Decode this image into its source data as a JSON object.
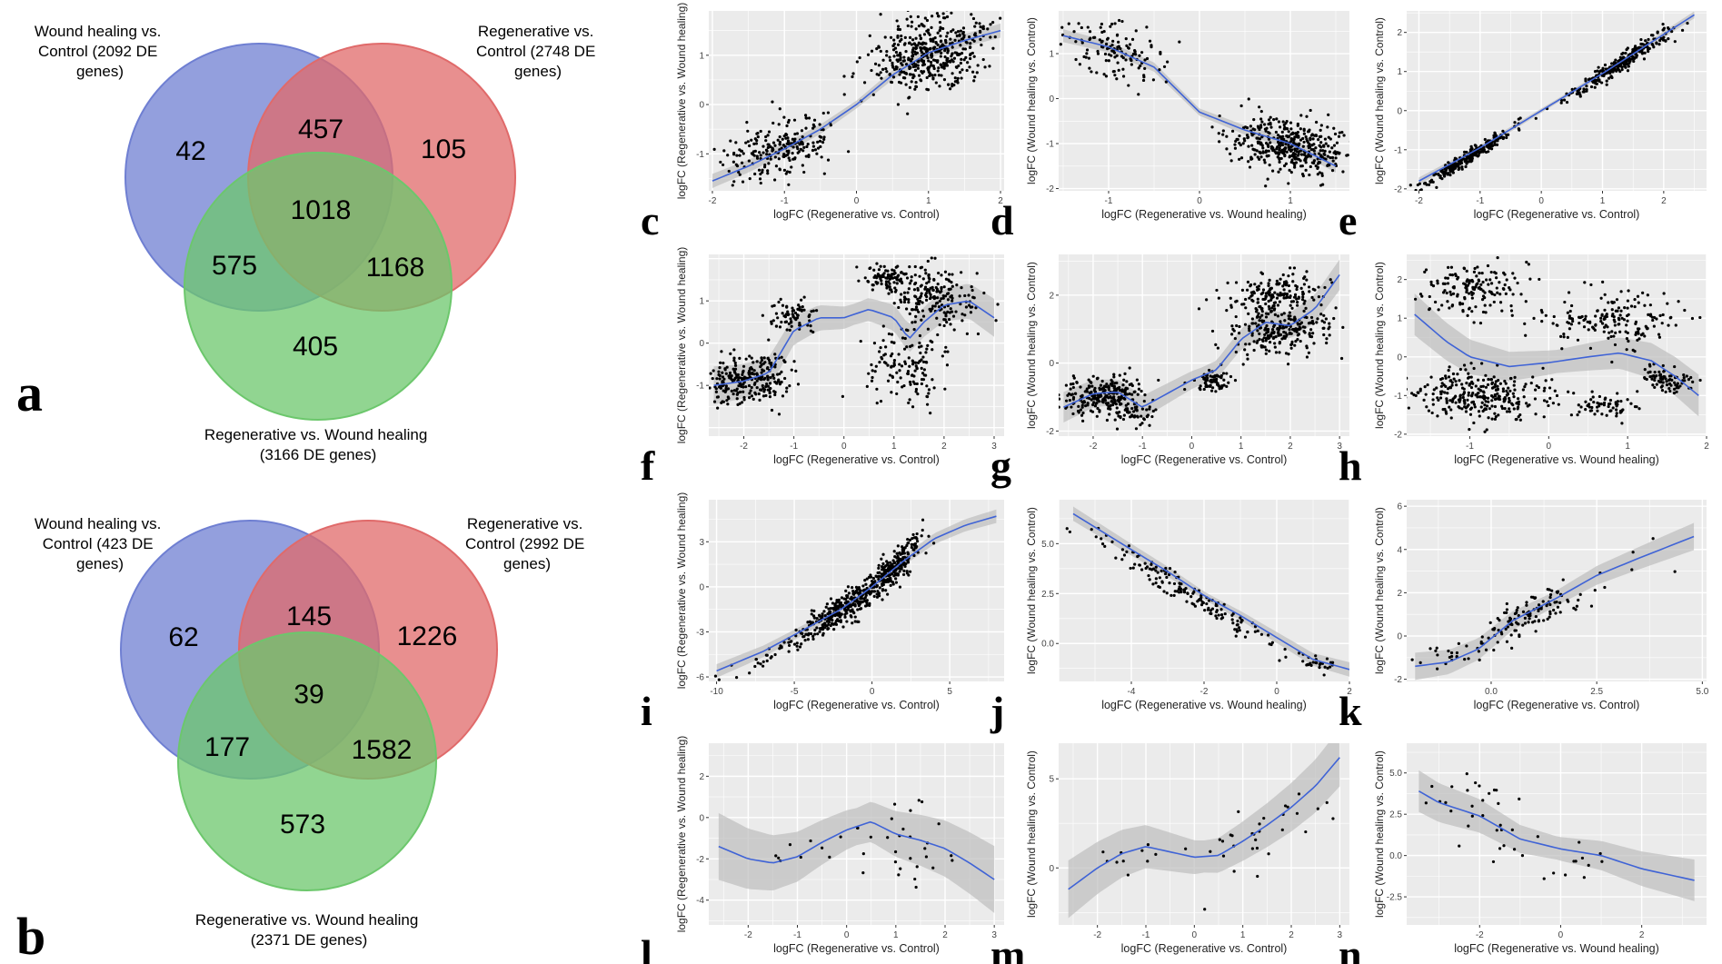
{
  "colors": {
    "wound": "#6f7fd2",
    "regen": "#e06a6a",
    "regen_wound": "#6cc76c",
    "panel_bg": "#ebebeb",
    "grid": "#ffffff",
    "smooth": "#3f63d6",
    "band": "#bdbdbd",
    "point": "#000000"
  },
  "venns": [
    {
      "panel_label": "a",
      "circles": [
        {
          "name": "wound",
          "label_lines": [
            "Wound healing vs.",
            "Control (2092 DE",
            "genes)"
          ]
        },
        {
          "name": "regen",
          "label_lines": [
            "Regenerative vs.",
            "Control (2748 DE",
            "genes)"
          ]
        },
        {
          "name": "rw",
          "label_lines": [
            "Regenerative vs. Wound healing",
            "(3166 DE genes)"
          ]
        }
      ],
      "counts": {
        "wound_only": "42",
        "wound_regen": "457",
        "regen_only": "105",
        "all": "1018",
        "wound_rw": "575",
        "regen_rw": "1168",
        "rw_only": "405"
      }
    },
    {
      "panel_label": "b",
      "circles": [
        {
          "name": "wound",
          "label_lines": [
            "Wound healing vs.",
            "Control (423 DE",
            "genes)"
          ]
        },
        {
          "name": "regen",
          "label_lines": [
            "Regenerative vs.",
            "Control (2992 DE",
            "genes)"
          ]
        },
        {
          "name": "rw",
          "label_lines": [
            "Regenerative vs. Wound healing",
            "(2371 DE genes)"
          ]
        }
      ],
      "counts": {
        "wound_only": "62",
        "wound_regen": "145",
        "regen_only": "1226",
        "all": "39",
        "wound_rw": "177",
        "regen_rw": "1582",
        "rw_only": "573"
      }
    }
  ],
  "chart_data": [
    {
      "panel": "c",
      "type": "scatter",
      "xlabel": "logFC (Regenerative vs. Control)",
      "ylabel": "logFC (Regenerative vs. Wound healing)",
      "xlim": [
        -2.05,
        2.05
      ],
      "ylim": [
        -1.75,
        1.9
      ],
      "xticks": [
        -2,
        -1,
        0,
        1,
        2
      ],
      "yticks": [
        -1,
        0,
        1
      ],
      "clusters": [
        {
          "cx": -1.05,
          "cy": -0.9,
          "sx": 0.4,
          "sy": 0.3,
          "n": 220,
          "slope": 0.35
        },
        {
          "cx": 1.05,
          "cy": 1.05,
          "sx": 0.42,
          "sy": 0.35,
          "n": 450,
          "slope": 0.25
        }
      ],
      "smooth": {
        "x": [
          -2,
          -1.5,
          -1,
          -0.5,
          0,
          0.5,
          1,
          1.5,
          2
        ],
        "y": [
          -1.55,
          -1.25,
          -0.9,
          -0.5,
          0,
          0.6,
          1.05,
          1.3,
          1.5
        ]
      },
      "band_width": 0.08
    },
    {
      "panel": "d",
      "type": "scatter",
      "xlabel": "logFC (Regenerative vs. Wound healing)",
      "ylabel": "logFC (Wound healing vs. Control)",
      "xlim": [
        -1.55,
        1.65
      ],
      "ylim": [
        -2.05,
        1.95
      ],
      "xticks": [
        -1,
        0,
        1
      ],
      "yticks": [
        -2,
        -1,
        0,
        1,
        2
      ],
      "clusters": [
        {
          "cx": -0.95,
          "cy": 1.05,
          "sx": 0.3,
          "sy": 0.3,
          "n": 130,
          "slope": -0.3
        },
        {
          "cx": 1.0,
          "cy": -1.05,
          "sx": 0.35,
          "sy": 0.3,
          "n": 420,
          "slope": -0.3
        }
      ],
      "smooth": {
        "x": [
          -1.5,
          -1,
          -0.5,
          0,
          0.5,
          1,
          1.5
        ],
        "y": [
          1.4,
          1.15,
          0.7,
          -0.3,
          -0.7,
          -1.0,
          -1.5
        ]
      },
      "band_width": 0.08
    },
    {
      "panel": "e",
      "type": "scatter",
      "xlabel": "logFC (Regenerative vs. Control)",
      "ylabel": "logFC (Wound healing vs. Control)",
      "xlim": [
        -2.2,
        2.7
      ],
      "ylim": [
        -2.05,
        2.55
      ],
      "xticks": [
        -2,
        -1,
        0,
        1,
        2
      ],
      "yticks": [
        -2,
        -1,
        0,
        1,
        2
      ],
      "clusters": [
        {
          "cx": -1.2,
          "cy": -1.2,
          "sx": 0.35,
          "sy": 0.1,
          "n": 260,
          "slope": 1.0
        },
        {
          "cx": 1.3,
          "cy": 1.2,
          "sx": 0.45,
          "sy": 0.12,
          "n": 260,
          "slope": 1.0
        }
      ],
      "smooth": {
        "x": [
          -2,
          -1,
          0,
          1,
          2,
          2.5
        ],
        "y": [
          -1.8,
          -0.95,
          0.0,
          0.95,
          1.95,
          2.45
        ]
      },
      "band_width": 0.05
    },
    {
      "panel": "f",
      "type": "scatter",
      "xlabel": "logFC (Regenerative vs. Control)",
      "ylabel": "logFC (Regenerative vs. Wound healing)",
      "xlim": [
        -2.7,
        3.2
      ],
      "ylim": [
        -2.2,
        2.1
      ],
      "xticks": [
        -2,
        -1,
        0,
        1,
        2,
        3
      ],
      "yticks": [
        -1,
        0,
        1
      ],
      "clusters": [
        {
          "cx": -1.9,
          "cy": -0.85,
          "sx": 0.45,
          "sy": 0.3,
          "n": 260,
          "slope": 0.2
        },
        {
          "cx": -1.0,
          "cy": 0.7,
          "sx": 0.25,
          "sy": 0.2,
          "n": 70,
          "slope": 0
        },
        {
          "cx": 0.85,
          "cy": 1.55,
          "sx": 0.25,
          "sy": 0.15,
          "n": 80,
          "slope": 0
        },
        {
          "cx": 1.8,
          "cy": 1.1,
          "sx": 0.45,
          "sy": 0.35,
          "n": 200,
          "slope": -0.2
        },
        {
          "cx": 1.2,
          "cy": -0.55,
          "sx": 0.5,
          "sy": 0.45,
          "n": 140,
          "slope": 0
        }
      ],
      "smooth": {
        "x": [
          -2.6,
          -2,
          -1.5,
          -1,
          -0.5,
          0,
          0.5,
          1,
          1.3,
          1.6,
          2,
          2.5,
          3
        ],
        "y": [
          -1.0,
          -0.9,
          -0.7,
          0.3,
          0.6,
          0.6,
          0.8,
          0.6,
          0.1,
          0.5,
          0.9,
          1.0,
          0.6
        ]
      },
      "band_width": 0.25
    },
    {
      "panel": "g",
      "type": "scatter",
      "xlabel": "logFC (Regenerative vs. Control)",
      "ylabel": "logFC (Wound healing vs. Control)",
      "xlim": [
        -2.7,
        3.2
      ],
      "ylim": [
        -2.15,
        3.2
      ],
      "xticks": [
        -2,
        -1,
        0,
        1,
        2,
        3
      ],
      "yticks": [
        -2,
        0,
        2
      ],
      "clusters": [
        {
          "cx": -1.8,
          "cy": -1.0,
          "sx": 0.4,
          "sy": 0.3,
          "n": 250,
          "slope": 0.1
        },
        {
          "cx": -1.1,
          "cy": -1.45,
          "sx": 0.2,
          "sy": 0.2,
          "n": 40,
          "slope": 0
        },
        {
          "cx": 1.7,
          "cy": 2.0,
          "sx": 0.5,
          "sy": 0.35,
          "n": 180,
          "slope": 0.2
        },
        {
          "cx": 0.4,
          "cy": -0.55,
          "sx": 0.2,
          "sy": 0.15,
          "n": 70,
          "slope": 0
        },
        {
          "cx": 1.8,
          "cy": 0.9,
          "sx": 0.5,
          "sy": 0.35,
          "n": 220,
          "slope": 0.2
        }
      ],
      "smooth": {
        "x": [
          -2.6,
          -2,
          -1.5,
          -1,
          -0.5,
          0,
          0.5,
          1,
          1.5,
          2,
          2.5,
          3
        ],
        "y": [
          -1.3,
          -0.9,
          -0.85,
          -1.3,
          -0.9,
          -0.5,
          -0.2,
          0.7,
          1.2,
          1.1,
          1.6,
          2.6
        ]
      },
      "band_width": 0.25
    },
    {
      "panel": "h",
      "type": "scatter",
      "xlabel": "logFC (Regenerative vs. Wound healing)",
      "ylabel": "logFC (Wound healing vs. Control)",
      "xlim": [
        -1.8,
        2.0
      ],
      "ylim": [
        -2.05,
        2.65
      ],
      "xticks": [
        -1,
        0,
        1,
        2
      ],
      "yticks": [
        -2,
        -1,
        0,
        1,
        2
      ],
      "clusters": [
        {
          "cx": -0.9,
          "cy": 1.8,
          "sx": 0.35,
          "sy": 0.35,
          "n": 160,
          "slope": 0
        },
        {
          "cx": 0.8,
          "cy": 0.95,
          "sx": 0.45,
          "sy": 0.35,
          "n": 170,
          "slope": 0
        },
        {
          "cx": -0.9,
          "cy": -1.0,
          "sx": 0.45,
          "sy": 0.35,
          "n": 300,
          "slope": 0
        },
        {
          "cx": 0.7,
          "cy": -1.3,
          "sx": 0.2,
          "sy": 0.2,
          "n": 60,
          "slope": 0
        },
        {
          "cx": 1.5,
          "cy": -0.6,
          "sx": 0.2,
          "sy": 0.15,
          "n": 80,
          "slope": -0.4
        }
      ],
      "smooth": {
        "x": [
          -1.7,
          -1.3,
          -1,
          -0.5,
          0,
          0.5,
          0.9,
          1.3,
          1.6,
          1.9
        ],
        "y": [
          1.1,
          0.4,
          0.0,
          -0.25,
          -0.15,
          0.0,
          0.1,
          -0.1,
          -0.5,
          -1.0
        ]
      },
      "band_width": 0.3
    },
    {
      "panel": "i",
      "type": "scatter",
      "xlabel": "logFC (Regenerative vs. Control)",
      "ylabel": "logFC (Regenerative vs. Wound healing)",
      "xlim": [
        -10.5,
        8.5
      ],
      "ylim": [
        -6.3,
        5.8
      ],
      "xticks": [
        -10,
        -5,
        0,
        5
      ],
      "yticks": [
        -6,
        -3,
        0,
        3
      ],
      "clusters": [
        {
          "cx": -1.8,
          "cy": -1.4,
          "sx": 1.5,
          "sy": 0.5,
          "n": 300,
          "slope": 0.65
        },
        {
          "cx": 1.6,
          "cy": 1.5,
          "sx": 0.8,
          "sy": 0.5,
          "n": 200,
          "slope": 0.9
        },
        {
          "cx": -6,
          "cy": -4.3,
          "sx": 2,
          "sy": 0.3,
          "n": 40,
          "slope": 0.5
        }
      ],
      "smooth": {
        "x": [
          -10,
          -7,
          -5,
          -2,
          0,
          2,
          4,
          6,
          8
        ],
        "y": [
          -5.6,
          -4.3,
          -3.2,
          -1.5,
          0,
          1.7,
          3.2,
          4.1,
          4.7
        ]
      },
      "band_width": 0.25
    },
    {
      "panel": "j",
      "type": "scatter",
      "xlabel": "logFC (Regenerative vs. Wound healing)",
      "ylabel": "logFC (Wound healing vs. Control)",
      "xlim": [
        -6.0,
        2.0
      ],
      "ylim": [
        -1.9,
        7.2
      ],
      "xticks": [
        -4,
        -2,
        0,
        2
      ],
      "yticks": [
        0.0,
        2.5,
        5.0
      ],
      "clusters": [
        {
          "cx": -2.3,
          "cy": 2.4,
          "sx": 1.3,
          "sy": 0.35,
          "n": 160,
          "slope": -1.15
        },
        {
          "cx": 1.2,
          "cy": -1.0,
          "sx": 0.35,
          "sy": 0.2,
          "n": 25,
          "slope": -0.4
        }
      ],
      "smooth": {
        "x": [
          -5.6,
          -4,
          -3,
          -2,
          -1,
          0,
          1,
          2
        ],
        "y": [
          6.5,
          4.7,
          3.6,
          2.4,
          1.4,
          0.3,
          -0.8,
          -1.3
        ]
      },
      "band_width": 0.2
    },
    {
      "panel": "k",
      "type": "scatter",
      "xlabel": "logFC (Regenerative vs. Control)",
      "ylabel": "logFC (Wound healing vs. Control)",
      "xlim": [
        -2.0,
        5.1
      ],
      "ylim": [
        -2.1,
        6.3
      ],
      "xticks": [
        0.0,
        2.5,
        5.0
      ],
      "yticks": [
        -2,
        0,
        2,
        4,
        6
      ],
      "clusters": [
        {
          "cx": 1.0,
          "cy": 1.0,
          "sx": 0.65,
          "sy": 0.4,
          "n": 110,
          "slope": 0.9
        },
        {
          "cx": -0.8,
          "cy": -0.8,
          "sx": 0.5,
          "sy": 0.25,
          "n": 25,
          "slope": 0.2
        },
        {
          "cx": 3.5,
          "cy": 3.3,
          "sx": 1.1,
          "sy": 0.9,
          "n": 10,
          "slope": 0.8
        }
      ],
      "smooth": {
        "x": [
          -1.8,
          -1,
          -0.3,
          0.5,
          1.5,
          2.5,
          3.5,
          4.8
        ],
        "y": [
          -1.4,
          -1.2,
          -0.6,
          0.7,
          1.7,
          2.8,
          3.6,
          4.6
        ]
      },
      "band_width": 0.35
    },
    {
      "panel": "l",
      "type": "scatter",
      "xlabel": "logFC (Regenerative vs. Control)",
      "ylabel": "logFC (Regenerative vs. Wound healing)",
      "xlim": [
        -2.8,
        3.2
      ],
      "ylim": [
        -5.2,
        3.6
      ],
      "xticks": [
        -2,
        -1,
        0,
        1,
        2,
        3
      ],
      "yticks": [
        -4,
        -2,
        0,
        2
      ],
      "clusters": [
        {
          "cx": 1.2,
          "cy": -1.2,
          "sx": 0.6,
          "sy": 1.3,
          "n": 30,
          "slope": 0
        },
        {
          "cx": -1.2,
          "cy": -1.8,
          "sx": 0.4,
          "sy": 0.6,
          "n": 8,
          "slope": 0
        }
      ],
      "smooth": {
        "x": [
          -2.6,
          -2,
          -1.5,
          -1,
          -0.5,
          0,
          0.5,
          1,
          1.5,
          2,
          2.5,
          3
        ],
        "y": [
          -1.4,
          -2.0,
          -2.2,
          -1.9,
          -1.2,
          -0.6,
          -0.2,
          -0.8,
          -1.1,
          -1.5,
          -2.2,
          -3.0
        ]
      },
      "band_width": 0.9
    },
    {
      "panel": "m",
      "type": "scatter",
      "xlabel": "logFC (Regenerative vs. Control)",
      "ylabel": "logFC (Wound healing vs. Control)",
      "xlim": [
        -2.8,
        3.2
      ],
      "ylim": [
        -3.2,
        7.0
      ],
      "xticks": [
        -2,
        -1,
        0,
        1,
        2,
        3
      ],
      "yticks": [
        0,
        5
      ],
      "clusters": [
        {
          "cx": 1.6,
          "cy": 1.9,
          "sx": 0.6,
          "sy": 1.2,
          "n": 30,
          "slope": 0.8
        },
        {
          "cx": -1.2,
          "cy": 0.6,
          "sx": 0.6,
          "sy": 0.6,
          "n": 12,
          "slope": 0
        }
      ],
      "smooth": {
        "x": [
          -2.6,
          -2,
          -1.5,
          -1,
          -0.5,
          0,
          0.5,
          1,
          1.5,
          2,
          2.5,
          3
        ],
        "y": [
          -1.2,
          0.0,
          0.8,
          1.2,
          0.9,
          0.6,
          0.7,
          1.5,
          2.4,
          3.4,
          4.6,
          6.2
        ]
      },
      "band_width": 0.9
    },
    {
      "panel": "n",
      "type": "scatter",
      "xlabel": "logFC (Regenerative vs. Wound healing)",
      "ylabel": "logFC (Wound healing vs. Control)",
      "xlim": [
        -3.8,
        3.6
      ],
      "ylim": [
        -4.2,
        6.8
      ],
      "xticks": [
        -2,
        0,
        2
      ],
      "yticks": [
        -2.5,
        0.0,
        2.5,
        5.0
      ],
      "clusters": [
        {
          "cx": -2.0,
          "cy": 2.5,
          "sx": 0.8,
          "sy": 1.1,
          "n": 30,
          "slope": -0.6
        },
        {
          "cx": 0.6,
          "cy": -0.3,
          "sx": 0.9,
          "sy": 0.7,
          "n": 12,
          "slope": 0
        }
      ],
      "smooth": {
        "x": [
          -3.5,
          -3,
          -2,
          -1,
          0,
          1,
          2,
          3.3
        ],
        "y": [
          3.9,
          3.2,
          2.4,
          1.0,
          0.4,
          0.0,
          -0.8,
          -1.5
        ]
      },
      "band_width": 0.7
    }
  ]
}
